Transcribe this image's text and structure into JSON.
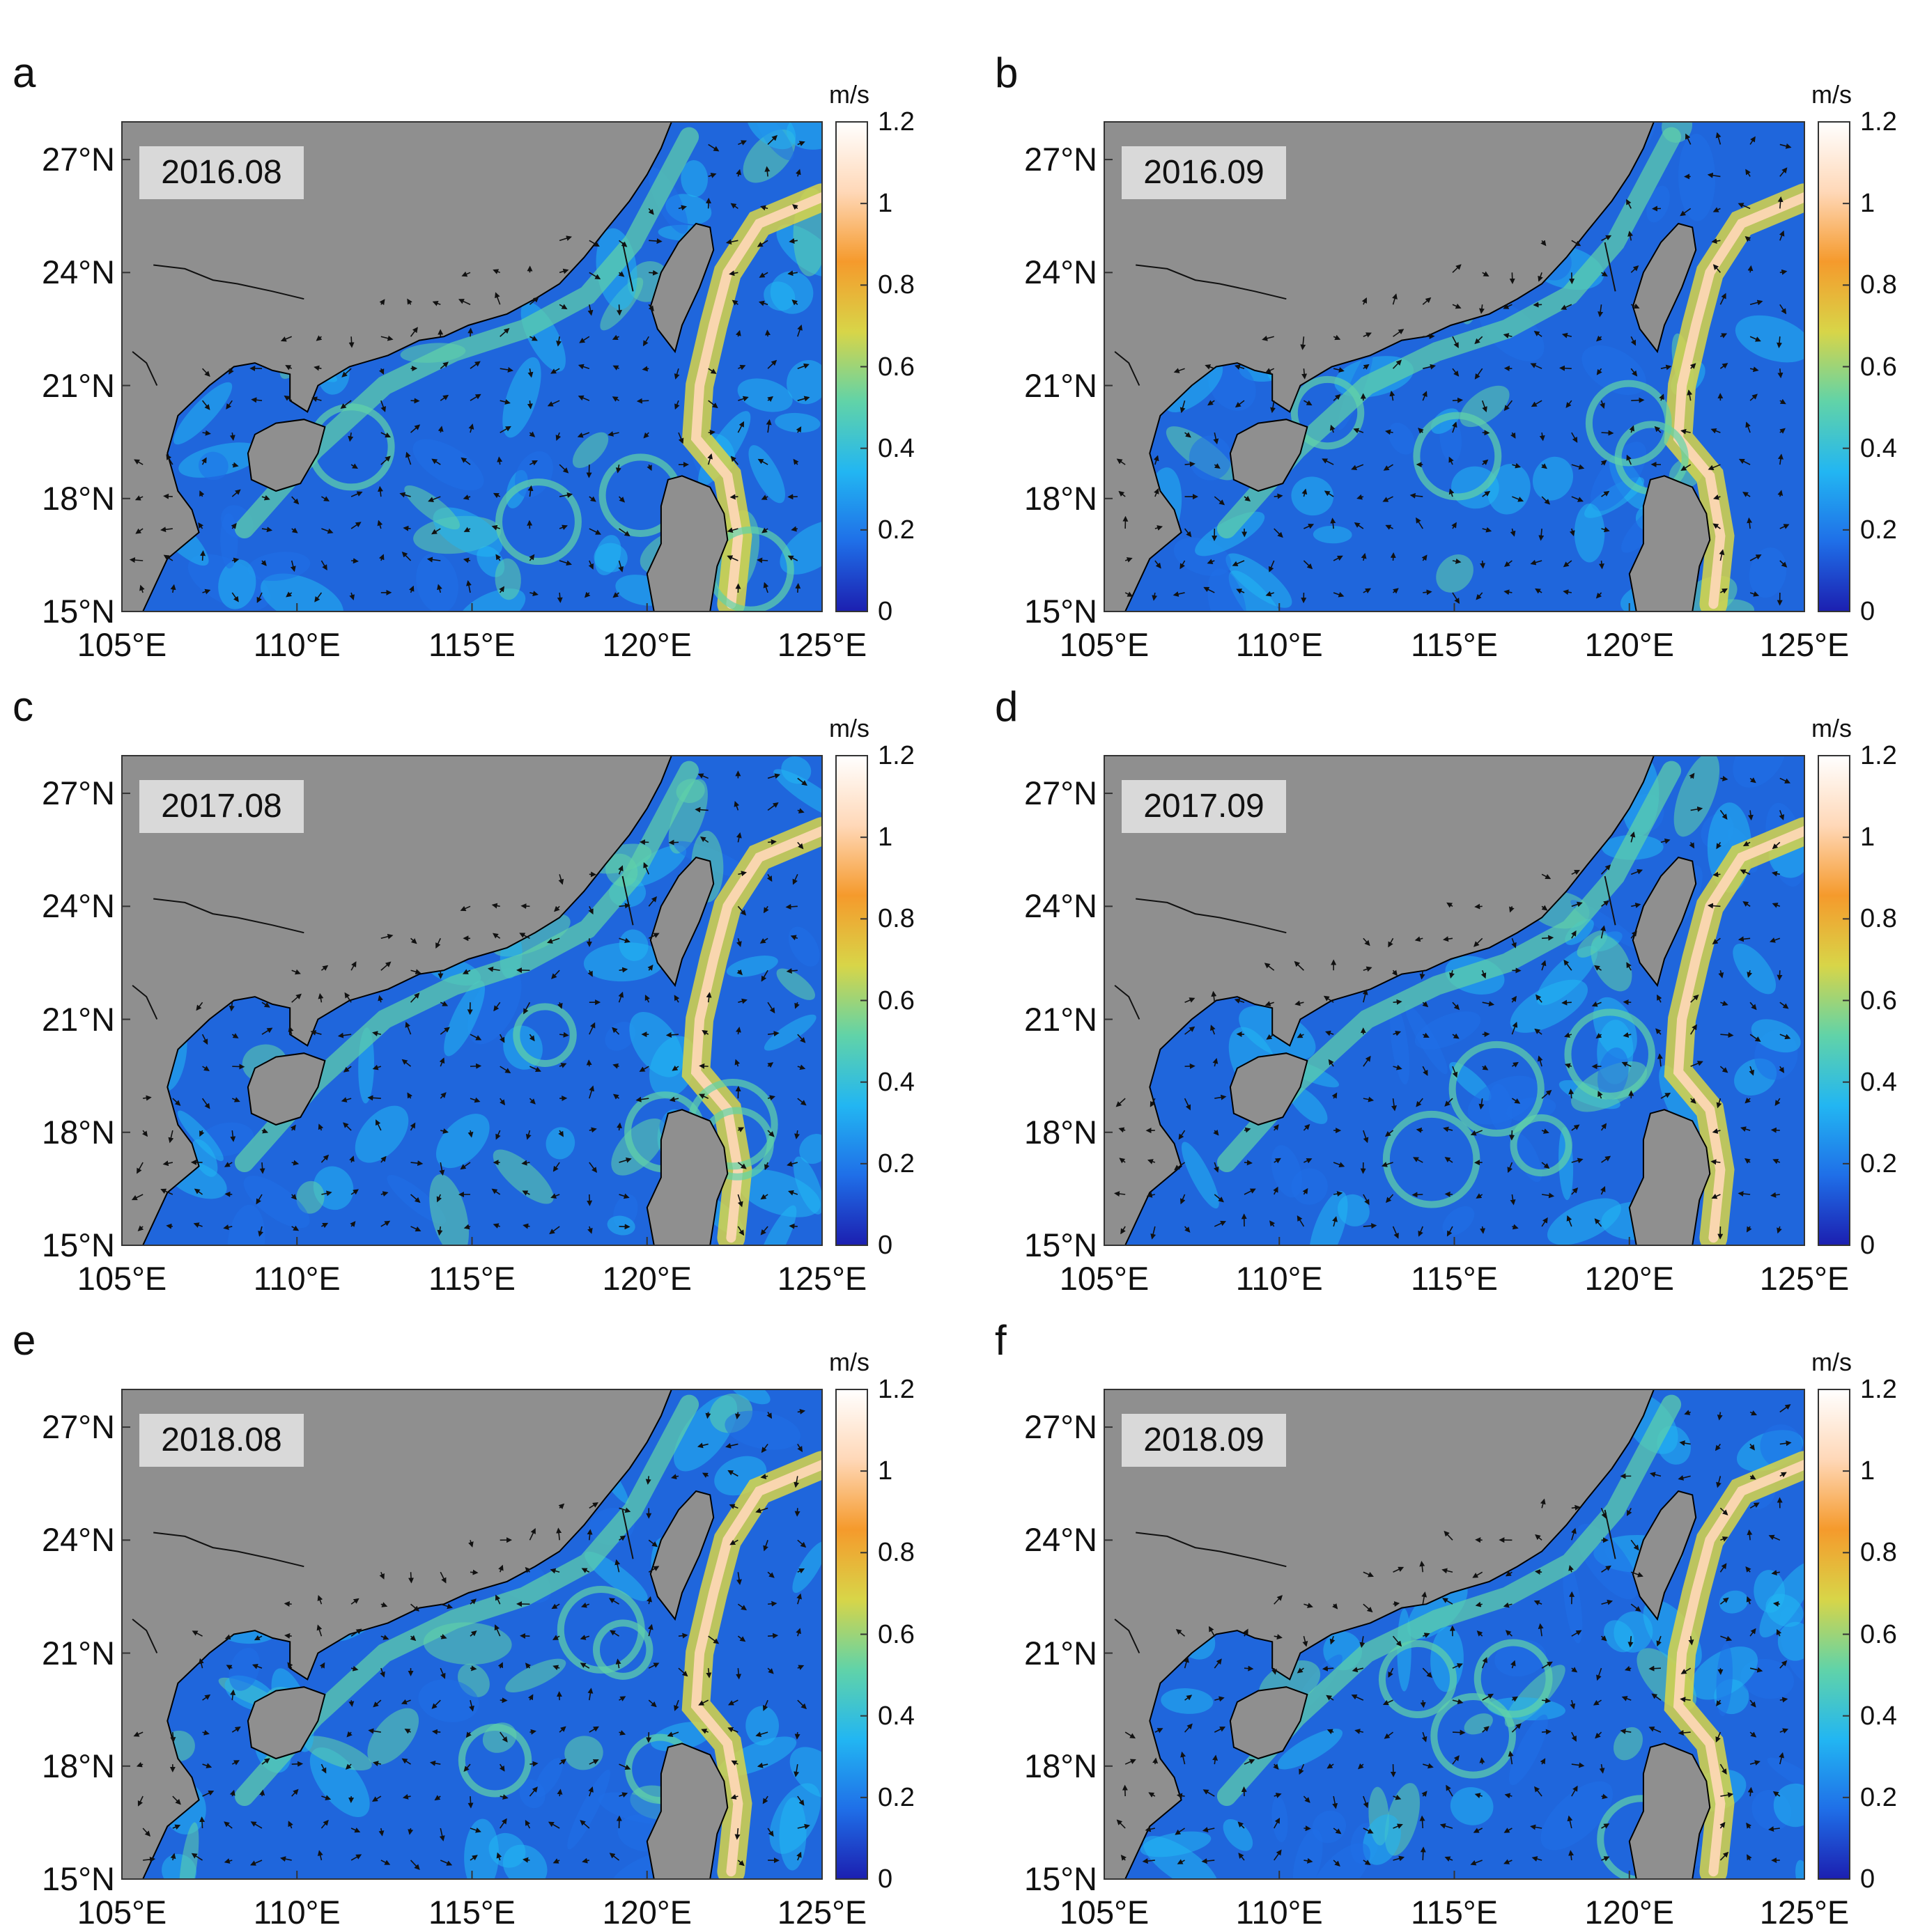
{
  "figure": {
    "map_extent": {
      "lon": [
        105,
        125
      ],
      "lat": [
        15,
        28
      ]
    },
    "land_color": "#8f8f8f",
    "ocean_colormap": [
      "#1c1fb0",
      "#1f6fe8",
      "#22b6f2",
      "#61d3a8",
      "#d8d548",
      "#f59a2c",
      "#ffd8b8",
      "#ffffff"
    ],
    "colorbar": {
      "unit": "m/s",
      "range": [
        0,
        1.2
      ],
      "ticks": [
        "0",
        "0.2",
        "0.4",
        "0.6",
        "0.8",
        "1",
        "1.2"
      ]
    },
    "y_ticks": [
      "15°N",
      "18°N",
      "21°N",
      "24°N",
      "27°N"
    ],
    "x_ticks": [
      "105°E",
      "110°E",
      "115°E",
      "120°E",
      "125°E"
    ],
    "panels": [
      {
        "letter": "a",
        "date": "2016.08"
      },
      {
        "letter": "b",
        "date": "2016.09"
      },
      {
        "letter": "c",
        "date": "2017.08"
      },
      {
        "letter": "d",
        "date": "2017.09"
      },
      {
        "letter": "e",
        "date": "2018.08"
      },
      {
        "letter": "f",
        "date": "2018.09"
      }
    ]
  }
}
